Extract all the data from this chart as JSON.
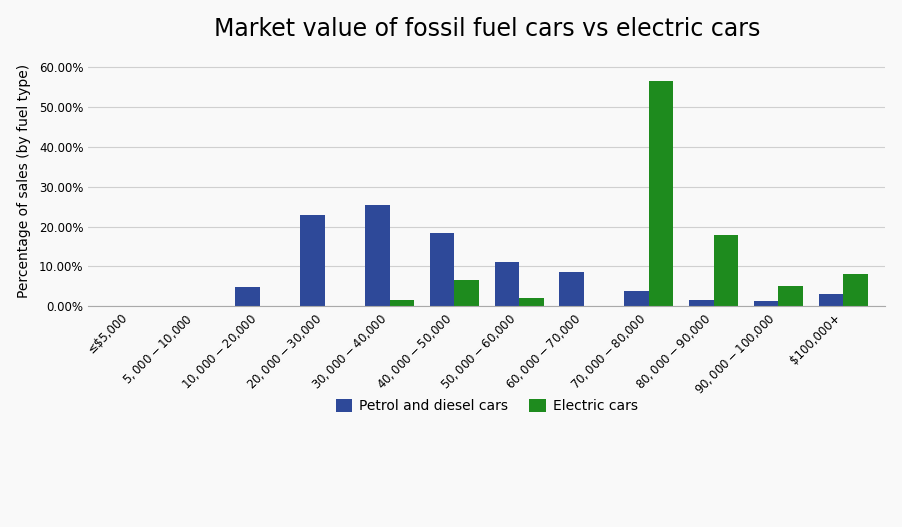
{
  "title": "Market value of fossil fuel cars vs electric cars",
  "ylabel": "Percentage of sales (by fuel type)",
  "categories": [
    "≤$5,000",
    "$5,000-$10,000",
    "$10,000-$20,000",
    "$20,000-$30,000",
    "$30,000-$40,000",
    "$40,000-$50,000",
    "$50,000-$60,000",
    "$60,000-$70,000",
    "$70,000-$80,000",
    "$80,000-$90,000",
    "$90,000-$100,000",
    "$100,000+"
  ],
  "petrol_diesel": [
    0.0,
    0.0,
    0.048,
    0.228,
    0.255,
    0.185,
    0.111,
    0.085,
    0.038,
    0.016,
    0.014,
    0.03
  ],
  "electric": [
    0.0,
    0.0,
    0.0,
    0.0,
    0.015,
    0.065,
    0.02,
    0.0,
    0.565,
    0.18,
    0.05,
    0.082
  ],
  "petrol_color": "#2e4999",
  "electric_color": "#1e8b1e",
  "legend_petrol": "Petrol and diesel cars",
  "legend_electric": "Electric cars",
  "ylim_max": 0.63,
  "yticks": [
    0.0,
    0.1,
    0.2,
    0.3,
    0.4,
    0.5,
    0.6
  ],
  "background_color": "#f9f9f9",
  "plot_bg_color": "#f9f9f9",
  "grid_color": "#d0d0d0",
  "title_fontsize": 17,
  "axis_label_fontsize": 10,
  "tick_fontsize": 8.5,
  "legend_fontsize": 10,
  "bar_width": 0.38
}
